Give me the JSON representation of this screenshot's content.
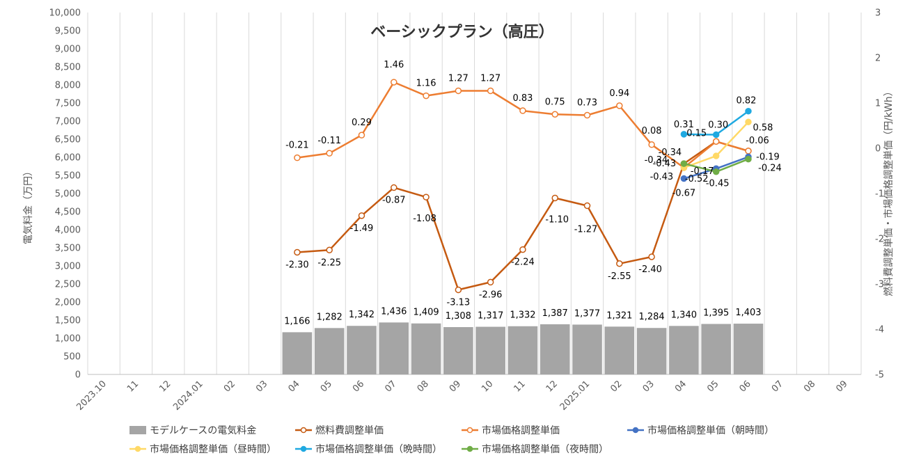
{
  "chart_data": {
    "type": "bar",
    "title": "ベーシックプラン（高圧）",
    "ylabel_left": "電気料金（万円）",
    "ylabel_right": "燃料費調整単価・市場価格調整単価（円/kWh）",
    "y_left_range": [
      0,
      10000
    ],
    "y_left_ticks": [
      "0",
      "500",
      "1,000",
      "1,500",
      "2,000",
      "2,500",
      "3,000",
      "3,500",
      "4,000",
      "4,500",
      "5,000",
      "5,500",
      "6,000",
      "6,500",
      "7,000",
      "7,500",
      "8,000",
      "8,500",
      "9,000",
      "9,500",
      "10,000"
    ],
    "y_right_range": [
      -5,
      3
    ],
    "y_right_ticks": [
      "-5",
      "-4",
      "-3",
      "-2",
      "-1",
      "0",
      "1",
      "2",
      "3"
    ],
    "grid": "vertical",
    "legend_position": "bottom",
    "categories": [
      "2023.10",
      "11",
      "12",
      "2024.01",
      "02",
      "03",
      "04",
      "05",
      "06",
      "07",
      "08",
      "09",
      "10",
      "11",
      "12",
      "2025.01",
      "02",
      "03",
      "04",
      "05",
      "06",
      "07",
      "08",
      "09"
    ],
    "series": [
      {
        "name": "モデルケースの電気料金",
        "kind": "bar",
        "axis": "left",
        "color": "#a5a5a5",
        "values": [
          null,
          null,
          null,
          null,
          null,
          null,
          1166,
          1282,
          1342,
          1436,
          1409,
          1308,
          1317,
          1332,
          1387,
          1377,
          1321,
          1284,
          1340,
          1395,
          1403,
          null,
          null,
          null
        ],
        "labels": [
          "",
          "",
          "",
          "",
          "",
          "",
          "1,166",
          "1,282",
          "1,342",
          "1,436",
          "1,409",
          "1,308",
          "1,317",
          "1,332",
          "1,387",
          "1,377",
          "1,321",
          "1,284",
          "1,340",
          "1,395",
          "1,403",
          "",
          "",
          ""
        ]
      },
      {
        "name": "燃料費調整単価",
        "kind": "line",
        "axis": "right",
        "color": "#c55a11",
        "marker": "hollow",
        "values": [
          null,
          null,
          null,
          null,
          null,
          null,
          -2.3,
          -2.25,
          -1.49,
          -0.87,
          -1.08,
          -3.13,
          -2.96,
          -2.24,
          -1.1,
          -1.27,
          -2.55,
          -2.4,
          -0.34,
          0.15,
          -0.06,
          null,
          null,
          null
        ],
        "labels": [
          "",
          "",
          "",
          "",
          "",
          "",
          "-2.30",
          "-2.25",
          "-1.49",
          "-0.87",
          "-1.08",
          "-3.13",
          "-2.96",
          "-2.24",
          "-1.10",
          "-1.27",
          "-2.55",
          "-2.40",
          "-0.34",
          "0.15",
          "-0.06",
          "",
          "",
          ""
        ]
      },
      {
        "name": "市場価格調整単価",
        "kind": "line",
        "axis": "right",
        "color": "#ed7d31",
        "marker": "hollow",
        "values": [
          null,
          null,
          null,
          null,
          null,
          null,
          -0.21,
          -0.11,
          0.29,
          1.46,
          1.16,
          1.27,
          1.27,
          0.83,
          0.75,
          0.73,
          0.94,
          0.08,
          -0.43,
          0.15,
          -0.06,
          null,
          null,
          null
        ],
        "labels": [
          "",
          "",
          "",
          "",
          "",
          "",
          "-0.21",
          "-0.11",
          "0.29",
          "1.46",
          "1.16",
          "1.27",
          "1.27",
          "0.83",
          "0.75",
          "0.73",
          "0.94",
          "0.08",
          "-0.43",
          "",
          "",
          "",
          "",
          ""
        ]
      },
      {
        "name": "市場価格調整単価（朝時間）",
        "kind": "line",
        "axis": "right",
        "color": "#4472c4",
        "marker": "filled",
        "values": [
          null,
          null,
          null,
          null,
          null,
          null,
          null,
          null,
          null,
          null,
          null,
          null,
          null,
          null,
          null,
          null,
          null,
          null,
          -0.67,
          -0.45,
          -0.19,
          null,
          null,
          null
        ],
        "labels": [
          "",
          "",
          "",
          "",
          "",
          "",
          "",
          "",
          "",
          "",
          "",
          "",
          "",
          "",
          "",
          "",
          "",
          "",
          "-0.67",
          "-0.45",
          "-0.19",
          "",
          "",
          ""
        ]
      },
      {
        "name": "市場価格調整単価（昼時間）",
        "kind": "line",
        "axis": "right",
        "color": "#ffd966",
        "marker": "filled",
        "values": [
          null,
          null,
          null,
          null,
          null,
          null,
          null,
          null,
          null,
          null,
          null,
          null,
          null,
          null,
          null,
          null,
          null,
          null,
          -0.43,
          -0.17,
          0.58,
          null,
          null,
          null
        ],
        "labels": [
          "",
          "",
          "",
          "",
          "",
          "",
          "",
          "",
          "",
          "",
          "",
          "",
          "",
          "",
          "",
          "",
          "",
          "",
          "-0.43",
          "-0.17",
          "0.58",
          "",
          "",
          ""
        ]
      },
      {
        "name": "市場価格調整単価（晩時間）",
        "kind": "line",
        "axis": "right",
        "color": "#1fa9e1",
        "marker": "filled",
        "values": [
          null,
          null,
          null,
          null,
          null,
          null,
          null,
          null,
          null,
          null,
          null,
          null,
          null,
          null,
          null,
          null,
          null,
          null,
          0.31,
          0.3,
          0.82,
          null,
          null,
          null
        ],
        "labels": [
          "",
          "",
          "",
          "",
          "",
          "",
          "",
          "",
          "",
          "",
          "",
          "",
          "",
          "",
          "",
          "",
          "",
          "",
          "0.31",
          "0.30",
          "0.82",
          "",
          "",
          ""
        ]
      },
      {
        "name": "市場価格調整単価（夜時間）",
        "kind": "line",
        "axis": "right",
        "color": "#70ad47",
        "marker": "filled",
        "values": [
          null,
          null,
          null,
          null,
          null,
          null,
          null,
          null,
          null,
          null,
          null,
          null,
          null,
          null,
          null,
          null,
          null,
          null,
          -0.34,
          -0.52,
          -0.24,
          null,
          null,
          null
        ],
        "labels": [
          "",
          "",
          "",
          "",
          "",
          "",
          "",
          "",
          "",
          "",
          "",
          "",
          "",
          "",
          "",
          "",
          "",
          "",
          "-0.34",
          "-0.52",
          "-0.24",
          "",
          "",
          ""
        ]
      }
    ]
  }
}
